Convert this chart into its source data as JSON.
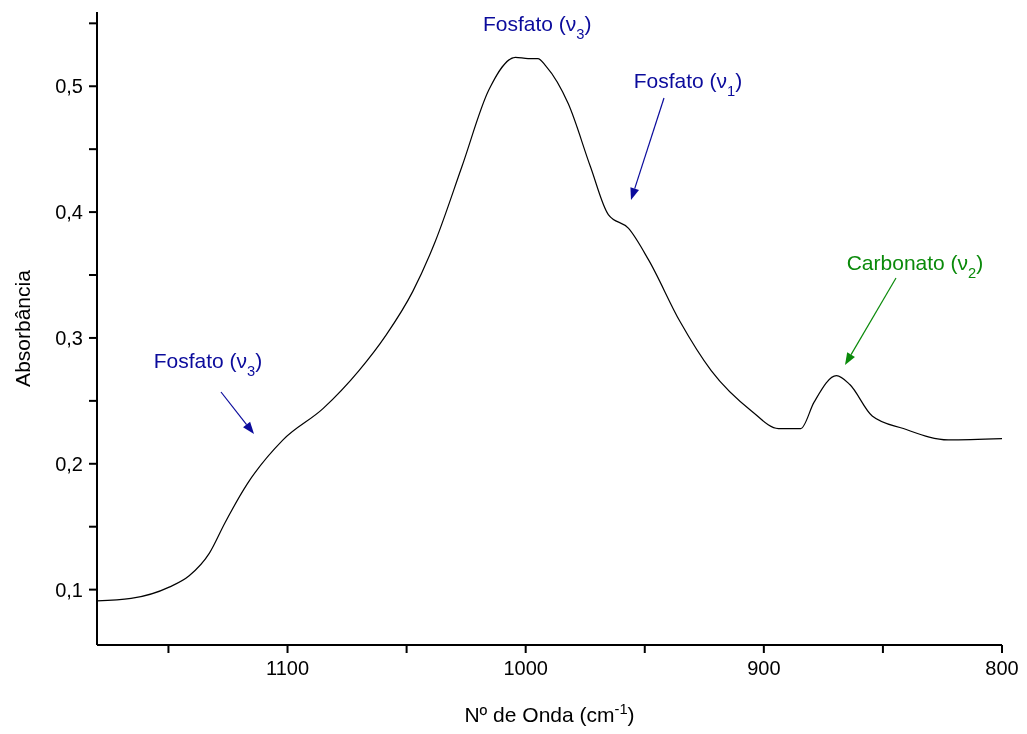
{
  "chart_data": {
    "type": "line",
    "xlabel": "Nº de Onda (cm$^{-1}$)",
    "ylabel": "Absorbância",
    "x": [
      1180,
      1165.7,
      1149.7,
      1141.3,
      1132.8,
      1126.3,
      1116.9,
      1101.9,
      1085,
      1070,
      1058.7,
      1047.4,
      1038.1,
      1026.8,
      1015.5,
      1004.3,
      999,
      994.9,
      991.5,
      982.1,
      972.8,
      965.3,
      956.8,
      948.4,
      935.2,
      922.1,
      905.2,
      893.9,
      884.5,
      878.9,
      869.5,
      863.9,
      854.5,
      841.4,
      822.6,
      800
    ],
    "series": [
      {
        "color": "#000000",
        "values": [
          0.091,
          0.093,
          0.102,
          0.111,
          0.129,
          0.153,
          0.184,
          0.219,
          0.244,
          0.274,
          0.302,
          0.337,
          0.376,
          0.436,
          0.497,
          0.523,
          0.522,
          0.522,
          0.516,
          0.486,
          0.436,
          0.398,
          0.387,
          0.362,
          0.313,
          0.274,
          0.242,
          0.228,
          0.228,
          0.249,
          0.27,
          0.263,
          0.238,
          0.228,
          0.219,
          0.22
        ]
      }
    ],
    "xlim": [
      1180,
      800
    ],
    "xticks": [
      {
        "value": 1150,
        "label": null
      },
      1100,
      {
        "value": 1050,
        "label": null
      },
      1000,
      {
        "value": 950,
        "label": null
      },
      900,
      {
        "value": 850,
        "label": null
      },
      800
    ],
    "ylim": [
      0.056,
      0.559
    ],
    "yticks": [
      {
        "value": 0.1,
        "label": "0,1"
      },
      {
        "value": 0.15,
        "label": null
      },
      {
        "value": 0.2,
        "label": "0,2"
      },
      {
        "value": 0.25,
        "label": null
      },
      {
        "value": 0.3,
        "label": "0,3"
      },
      {
        "value": 0.35,
        "label": null
      },
      {
        "value": 0.4,
        "label": "0,4"
      },
      {
        "value": 0.45,
        "label": null
      },
      {
        "value": 0.5,
        "label": "0,5"
      },
      {
        "value": 0.55,
        "label": null
      }
    ],
    "grid": false,
    "legend": false,
    "marker": "none",
    "line_style": "solid",
    "annotations": [
      "Fosfato (ν$_{3}$)",
      {
        "text": "Fosfato (ν$_{3}$)",
        "x": 1004,
        "y": 0.523
      },
      "Fosfato (ν$_{1}$)",
      "Carbonato (ν$_{2}$)"
    ]
  }
}
